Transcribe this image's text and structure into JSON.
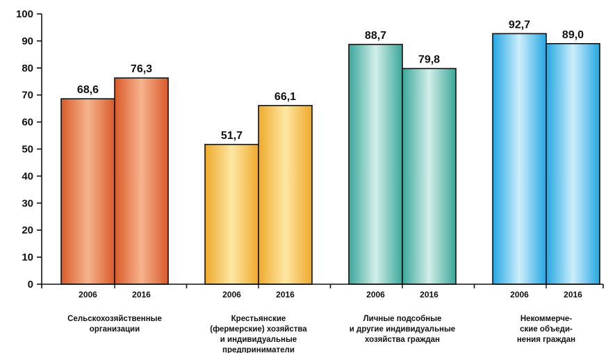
{
  "chart_data": {
    "type": "bar",
    "title": "",
    "xlabel": "",
    "ylabel": "",
    "ylim": [
      0,
      100
    ],
    "yticks": [
      0,
      10,
      20,
      30,
      40,
      50,
      60,
      70,
      80,
      90,
      100
    ],
    "grid": false,
    "groups": [
      {
        "label_lines": [
          "Сельскохозяйственные",
          "организации"
        ],
        "bars": [
          {
            "year": "2006",
            "value": 68.6,
            "value_label": "68,6"
          },
          {
            "year": "2016",
            "value": 76.3,
            "value_label": "76,3"
          }
        ]
      },
      {
        "label_lines": [
          "Крестьянские",
          "(фермерские) хозяйства",
          "и индивидуальные",
          "предприниматели"
        ],
        "bars": [
          {
            "year": "2006",
            "value": 51.7,
            "value_label": "51,7"
          },
          {
            "year": "2016",
            "value": 66.1,
            "value_label": "66,1"
          }
        ]
      },
      {
        "label_lines": [
          "Личные подсобные",
          "и другие индивидуальные",
          "хозяйства граждан"
        ],
        "bars": [
          {
            "year": "2006",
            "value": 88.7,
            "value_label": "88,7"
          },
          {
            "year": "2016",
            "value": 79.8,
            "value_label": "79,8"
          }
        ]
      },
      {
        "label_lines": [
          "Некоммерче-",
          "ские объеди-",
          "нения граждан"
        ],
        "bars": [
          {
            "year": "2006",
            "value": 92.7,
            "value_label": "92,7"
          },
          {
            "year": "2016",
            "value": 89.0,
            "value_label": "89,0"
          }
        ]
      }
    ],
    "colors": {
      "group_0": [
        "#d85a2a",
        "#f6b48d",
        "#d85a2a"
      ],
      "group_1": [
        "#efaa2c",
        "#fde7a3",
        "#efaa2c"
      ],
      "group_2": [
        "#3aa79a",
        "#d2efe9",
        "#3aa79a"
      ],
      "group_3": [
        "#24a7e2",
        "#cdeefb",
        "#24a7e2"
      ],
      "bar_outline": "#111111",
      "axis": "#111111"
    }
  }
}
